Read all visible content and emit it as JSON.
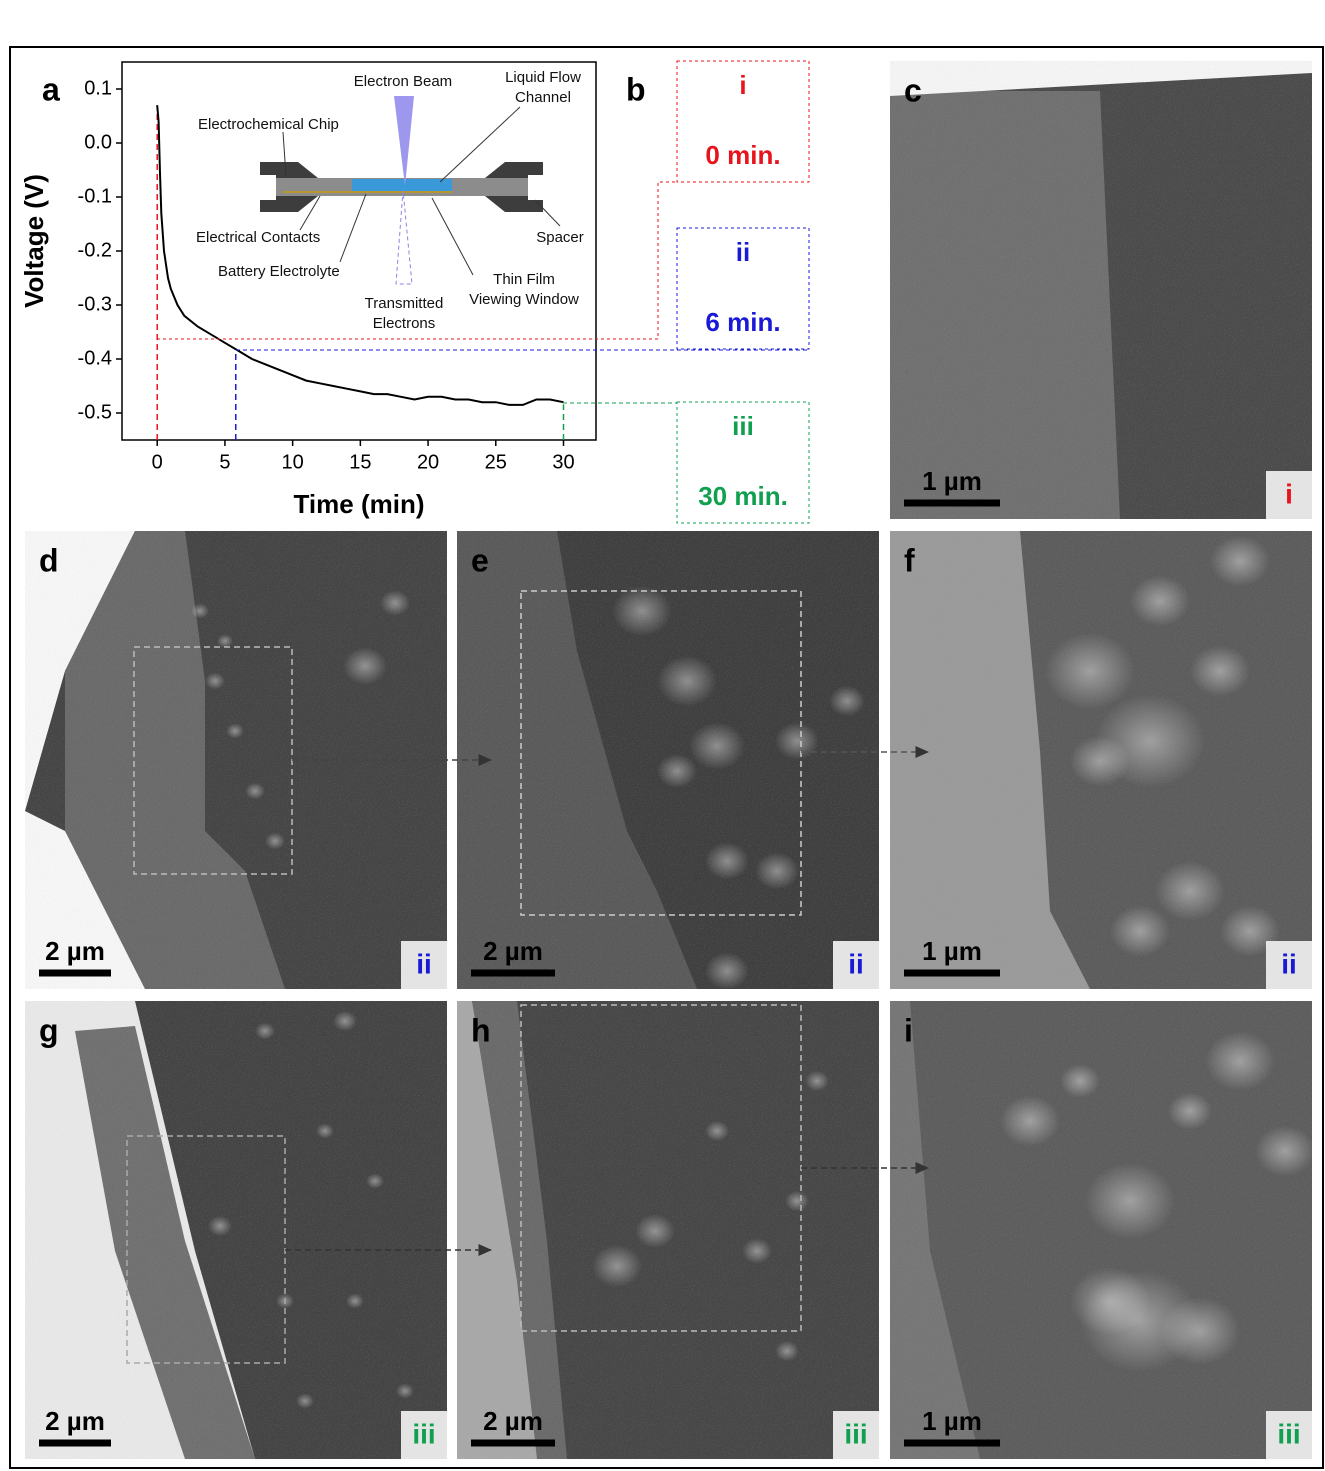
{
  "chart_data": {
    "type": "line",
    "x_label": "Time (min)",
    "y_label": "Voltage (V)",
    "x": [
      0,
      0.1,
      0.2,
      0.3,
      0.5,
      0.8,
      1,
      1.5,
      2,
      3,
      4,
      5,
      6,
      7,
      8,
      9,
      10,
      11,
      12,
      13,
      14,
      15,
      16,
      17,
      18,
      19,
      20,
      21,
      22,
      23,
      24,
      25,
      26,
      27,
      28,
      29,
      30
    ],
    "values": [
      0.07,
      0.04,
      -0.05,
      -0.13,
      -0.2,
      -0.25,
      -0.27,
      -0.3,
      -0.32,
      -0.34,
      -0.355,
      -0.37,
      -0.385,
      -0.4,
      -0.41,
      -0.42,
      -0.43,
      -0.44,
      -0.445,
      -0.45,
      -0.455,
      -0.46,
      -0.465,
      -0.465,
      -0.47,
      -0.475,
      -0.47,
      -0.47,
      -0.475,
      -0.475,
      -0.48,
      -0.48,
      -0.485,
      -0.485,
      -0.475,
      -0.475,
      -0.48
    ],
    "color": "#000000",
    "xlim": [
      -2.6,
      32.4
    ],
    "ylim": [
      -0.55,
      0.15
    ],
    "xticks": [
      0,
      5,
      10,
      15,
      20,
      25,
      30
    ],
    "yticks": [
      0.1,
      {
        "value": 0,
        "label": "0.0"
      },
      -0.1,
      -0.2,
      -0.3,
      -0.4,
      -0.5
    ],
    "markers": [
      {
        "x": 0,
        "y": 0.07,
        "color": "#e8141b"
      },
      {
        "x": 5.8,
        "y": -0.385,
        "color": "#1a1ad6"
      },
      {
        "x": 30,
        "y": -0.484,
        "color": "#10a050"
      }
    ]
  },
  "panel_letters": [
    "a",
    "b"
  ],
  "schematic": {
    "labels": [
      [
        "Electron Beam"
      ],
      [
        "Liquid Flow",
        "Channel"
      ],
      [
        "Electrochemical Chip"
      ],
      [
        "Electrical Contacts"
      ],
      [
        "Battery Electrolyte"
      ],
      [
        "Transmitted",
        "Electrons"
      ],
      [
        "Thin Film",
        "Viewing Window"
      ],
      [
        "Spacer"
      ]
    ]
  },
  "stages": [
    {
      "numeral": "i",
      "time": "0 min.",
      "color": "#e8141b"
    },
    {
      "numeral": "ii",
      "time": "6 min.",
      "color": "#1a1ad6"
    },
    {
      "numeral": "iii",
      "time": "30 min.",
      "color": "#10a050"
    }
  ],
  "panels": [
    {
      "letter": "c",
      "scale_bar": "1 µm",
      "badge": "i",
      "badge_color": "#e8141b"
    },
    {
      "letter": "d",
      "scale_bar": "2 µm",
      "badge": "ii",
      "badge_color": "#1a1ad6"
    },
    {
      "letter": "e",
      "scale_bar": "2 µm",
      "badge": "ii",
      "badge_color": "#1a1ad6"
    },
    {
      "letter": "f",
      "scale_bar": "1 µm",
      "badge": "ii",
      "badge_color": "#1a1ad6"
    },
    {
      "letter": "g",
      "scale_bar": "2 µm",
      "badge": "iii",
      "badge_color": "#10a050"
    },
    {
      "letter": "h",
      "scale_bar": "2 µm",
      "badge": "iii",
      "badge_color": "#10a050"
    },
    {
      "letter": "i",
      "scale_bar": "1 µm",
      "badge": "iii",
      "badge_color": "#10a050"
    }
  ]
}
